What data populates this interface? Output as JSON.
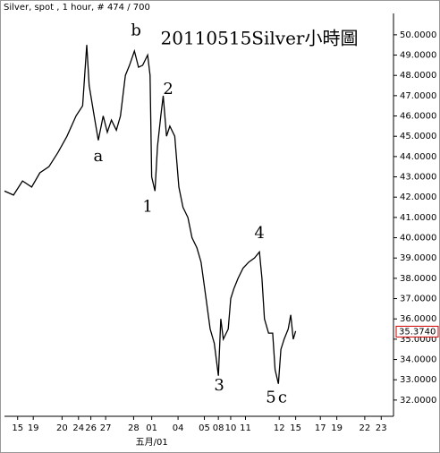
{
  "chart_data": {
    "type": "line",
    "header": "Silver, spot , 1 hour, # 474 / 700",
    "title": "20110515Silver小時圖",
    "color": "#000000",
    "x": [
      0,
      11,
      22,
      33,
      43,
      54,
      65,
      76,
      87,
      95,
      100,
      103,
      109,
      114,
      120,
      125,
      130,
      136,
      141,
      147,
      152,
      158,
      163,
      168,
      174,
      177,
      179,
      183,
      186,
      190,
      193,
      197,
      201,
      207,
      212,
      217,
      223,
      228,
      234,
      239,
      245,
      250,
      255,
      260,
      263,
      266,
      272,
      275,
      279,
      284,
      290,
      297,
      304,
      310,
      313,
      316,
      321,
      326,
      329,
      333,
      336,
      340,
      345,
      348,
      351,
      354
    ],
    "series": [
      {
        "name": "Silver",
        "color": "#000000",
        "values": [
          42.3,
          42.1,
          42.8,
          42.5,
          43.2,
          43.5,
          44.2,
          45.0,
          46.0,
          46.5,
          49.5,
          47.5,
          46.0,
          44.8,
          46.0,
          45.2,
          45.8,
          45.3,
          46.0,
          48.0,
          48.5,
          49.2,
          48.4,
          48.5,
          49.0,
          48.0,
          43.0,
          42.3,
          44.5,
          46.0,
          47.0,
          45.0,
          45.5,
          45.0,
          42.5,
          41.5,
          41.0,
          40.0,
          39.5,
          38.8,
          37.0,
          35.5,
          34.8,
          33.2,
          36.0,
          35.0,
          35.5,
          37.0,
          37.5,
          38.0,
          38.5,
          38.8,
          39.0,
          39.3,
          38.0,
          36.0,
          35.3,
          35.3,
          33.5,
          32.8,
          34.5,
          35.0,
          35.5,
          36.2,
          35.0,
          35.4
        ]
      }
    ],
    "xlim": [
      0,
      474
    ],
    "ylim": [
      31.2,
      50.7
    ],
    "xticks": [
      {
        "value": 16,
        "label": "15"
      },
      {
        "value": 35,
        "label": "19"
      },
      {
        "value": 70,
        "label": "20"
      },
      {
        "value": 90,
        "label": "24"
      },
      {
        "value": 105,
        "label": "26"
      },
      {
        "value": 123,
        "label": "27"
      },
      {
        "value": 157,
        "label": "28"
      },
      {
        "value": 179,
        "label": "01"
      },
      {
        "value": 211,
        "label": "04"
      },
      {
        "value": 243,
        "label": "05"
      },
      {
        "value": 260,
        "label": "08"
      },
      {
        "value": 275,
        "label": "10"
      },
      {
        "value": 293,
        "label": "11"
      },
      {
        "value": 334,
        "label": "12"
      },
      {
        "value": 354,
        "label": "15"
      },
      {
        "value": 384,
        "label": "17"
      },
      {
        "value": 404,
        "label": "19"
      },
      {
        "value": 438,
        "label": "22"
      },
      {
        "value": 458,
        "label": "23"
      }
    ],
    "month_label": {
      "value": 179,
      "label": "五月/01"
    },
    "yticks": [
      {
        "value": 50,
        "label": "50.0000"
      },
      {
        "value": 49,
        "label": "49.0000"
      },
      {
        "value": 48,
        "label": "48.0000"
      },
      {
        "value": 47,
        "label": "47.0000"
      },
      {
        "value": 46,
        "label": "46.0000"
      },
      {
        "value": 45,
        "label": "45.0000"
      },
      {
        "value": 44,
        "label": "44.0000"
      },
      {
        "value": 43,
        "label": "43.0000"
      },
      {
        "value": 42,
        "label": "42.0000"
      },
      {
        "value": 41,
        "label": "41.0000"
      },
      {
        "value": 40,
        "label": "40.0000"
      },
      {
        "value": 39,
        "label": "39.0000"
      },
      {
        "value": 38,
        "label": "38.0000"
      },
      {
        "value": 37,
        "label": "37.0000"
      },
      {
        "value": 36,
        "label": "36.0000"
      },
      {
        "value": 35,
        "label": "35.0000"
      },
      {
        "value": 34,
        "label": "34.0000"
      },
      {
        "value": 33,
        "label": "33.0000"
      },
      {
        "value": 32,
        "label": "32.0000"
      }
    ],
    "last_value": {
      "value": 35.374,
      "label": "35.3740",
      "color": "#d00000"
    },
    "annotations": [
      {
        "text": "b",
        "x": 160,
        "y": 50.2,
        "color": "#3a3ab0"
      },
      {
        "text": "a",
        "x": 114,
        "y": 44.0,
        "color": "#3a3ab0"
      },
      {
        "text": "2",
        "x": 199,
        "y": 47.3,
        "color": "#d03030"
      },
      {
        "text": "1",
        "x": 174,
        "y": 41.5,
        "color": "#d03030"
      },
      {
        "text": "4",
        "x": 310,
        "y": 40.2,
        "color": "#d03030"
      },
      {
        "text": "3",
        "x": 261,
        "y": 32.7,
        "color": "#d03030"
      },
      {
        "text": "5",
        "x": 324,
        "y": 32.1,
        "color": "#d03030"
      },
      {
        "text": "c",
        "x": 338,
        "y": 32.1,
        "color": "#3a3ab0"
      }
    ]
  }
}
